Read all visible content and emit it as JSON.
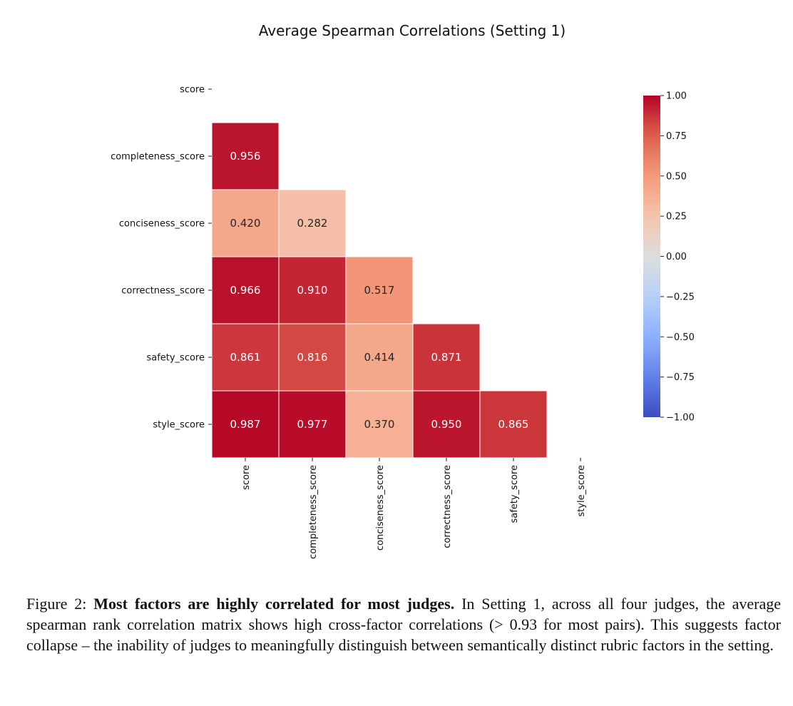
{
  "chart_data": {
    "type": "heatmap",
    "title": "Average Spearman Correlations (Setting 1)",
    "row_labels": [
      "score",
      "completeness_score",
      "conciseness_score",
      "correctness_score",
      "safety_score",
      "style_score"
    ],
    "col_labels": [
      "score",
      "completeness_score",
      "conciseness_score",
      "correctness_score",
      "safety_score",
      "style_score"
    ],
    "mask": "upper triangle including diagonal",
    "values": [
      [
        null,
        null,
        null,
        null,
        null,
        null
      ],
      [
        0.956,
        null,
        null,
        null,
        null,
        null
      ],
      [
        0.42,
        0.282,
        null,
        null,
        null,
        null
      ],
      [
        0.966,
        0.91,
        0.517,
        null,
        null,
        null
      ],
      [
        0.861,
        0.816,
        0.414,
        0.871,
        null,
        null
      ],
      [
        0.987,
        0.977,
        0.37,
        0.95,
        0.865,
        null
      ]
    ],
    "value_labels": [
      [
        "",
        "",
        "",
        "",
        "",
        ""
      ],
      [
        "0.956",
        "",
        "",
        "",
        "",
        ""
      ],
      [
        "0.420",
        "0.282",
        "",
        "",
        "",
        ""
      ],
      [
        "0.966",
        "0.910",
        "0.517",
        "",
        "",
        ""
      ],
      [
        "0.861",
        "0.816",
        "0.414",
        "0.871",
        "",
        ""
      ],
      [
        "0.987",
        "0.977",
        "0.370",
        "0.950",
        "0.865",
        ""
      ]
    ],
    "colormap": "coolwarm",
    "vmin": -1.0,
    "vmax": 1.0,
    "colorbar": {
      "ticks": [
        1.0,
        0.75,
        0.5,
        0.25,
        0.0,
        -0.25,
        -0.5,
        -0.75,
        -1.0
      ],
      "tick_labels": [
        "1.00",
        "0.75",
        "0.50",
        "0.25",
        "0.00",
        "−0.25",
        "−0.50",
        "−0.75",
        "−1.00"
      ],
      "position": "right"
    },
    "colors": {
      "cmap_low": "#3b4cc0",
      "cmap_mid": "#dddddd",
      "cmap_high": "#b40426",
      "cell_border": "#ffffff",
      "annot_dark": "#262626",
      "annot_light": "#ffffff"
    }
  },
  "caption": {
    "prefix": "Figure 2: ",
    "bold": "Most factors are highly correlated for most judges.",
    "text": "  In Setting 1, across all four judges, the average spearman rank correlation matrix shows high cross-factor correlations (> 0.93 for most pairs). This suggests factor collapse – the inability of judges to meaningfully distinguish between semantically distinct rubric factors in the setting."
  }
}
